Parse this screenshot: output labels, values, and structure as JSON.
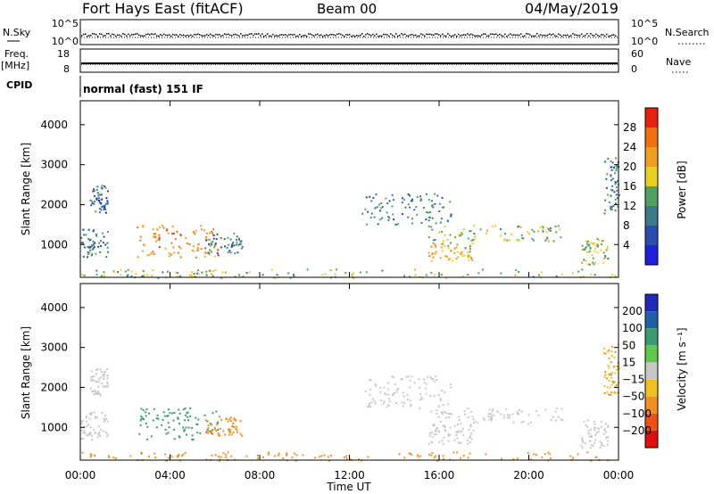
{
  "header": {
    "station": "Fort Hays East (fitACF)",
    "beam": "Beam 00",
    "date": "04/May/2019"
  },
  "sky_panel": {
    "left_label": "N.Sky",
    "right_label": "N.Search",
    "left_ticks": [
      "10^5",
      "10^0"
    ],
    "right_ticks": [
      "10^5",
      "10^0"
    ]
  },
  "freq_panel": {
    "left_label_1": "Freq.",
    "left_label_2": "[MHz]",
    "right_label": "Nave",
    "left_ticks": [
      "18",
      "8"
    ],
    "right_ticks": [
      "60",
      "0"
    ]
  },
  "cpid": {
    "label": "CPID",
    "value": "normal (fast) 151 IF"
  },
  "x_axis": {
    "label": "Time UT",
    "ticks": [
      "00:00",
      "04:00",
      "08:00",
      "12:00",
      "16:00",
      "20:00",
      "00:00"
    ]
  },
  "power_colorbar": {
    "label": "Power [dB]",
    "ticks": [
      "4",
      "8",
      "12",
      "16",
      "20",
      "24",
      "28"
    ],
    "colors": [
      "#1f1fe0",
      "#2a4db0",
      "#3d7a8a",
      "#52a060",
      "#e6d020",
      "#f0a020",
      "#f07010",
      "#e82010"
    ]
  },
  "velocity_colorbar": {
    "label": "Velocity [m s⁻¹]",
    "ticks": [
      "200",
      "100",
      "50",
      "15",
      "−15",
      "−50",
      "−100",
      "−200"
    ],
    "colors": [
      "#1e2ab8",
      "#2060a8",
      "#3a9a70",
      "#60c84a",
      "#c8c8c8",
      "#f0c020",
      "#f09020",
      "#f05010",
      "#e01010"
    ]
  },
  "chart_data": [
    {
      "type": "heatmap",
      "title": "",
      "ylabel": "Slant Range [km]",
      "xlabel": "",
      "y_ticks": [
        1000,
        2000,
        3000,
        4000
      ],
      "ylim": [
        180,
        4600
      ],
      "xlim_hours": [
        0,
        24
      ],
      "colorbar": "Power [dB]",
      "regions": [
        {
          "t0": 0,
          "t1": 1.2,
          "r0": 700,
          "r1": 1400,
          "power": 8
        },
        {
          "t0": 0.4,
          "t1": 1.2,
          "r0": 1800,
          "r1": 2500,
          "power": 6
        },
        {
          "t0": 2.5,
          "t1": 6.2,
          "r0": 700,
          "r1": 1500,
          "power": 22
        },
        {
          "t0": 5.5,
          "t1": 7.2,
          "r0": 800,
          "r1": 1300,
          "power": 8
        },
        {
          "t0": 0,
          "t1": 24,
          "r0": 180,
          "r1": 400,
          "power": 14
        },
        {
          "t0": 12.5,
          "t1": 16.5,
          "r0": 1500,
          "r1": 2300,
          "power": 8
        },
        {
          "t0": 15.5,
          "t1": 21.5,
          "r0": 1100,
          "r1": 1500,
          "power": 14
        },
        {
          "t0": 15.5,
          "t1": 17.5,
          "r0": 600,
          "r1": 1100,
          "power": 18
        },
        {
          "t0": 22.3,
          "t1": 23.5,
          "r0": 500,
          "r1": 1200,
          "power": 14
        },
        {
          "t0": 23.3,
          "t1": 24,
          "r0": 1800,
          "r1": 3200,
          "power": 8
        }
      ]
    },
    {
      "type": "heatmap",
      "title": "",
      "ylabel": "Slant Range [km]",
      "xlabel": "Time UT",
      "y_ticks": [
        1000,
        2000,
        3000,
        4000
      ],
      "ylim": [
        180,
        4600
      ],
      "xlim_hours": [
        0,
        24
      ],
      "colorbar": "Velocity [m s⁻¹]",
      "regions": [
        {
          "t0": 0,
          "t1": 1.2,
          "r0": 700,
          "r1": 1400,
          "velocity": 0
        },
        {
          "t0": 0.4,
          "t1": 1.2,
          "r0": 1800,
          "r1": 2500,
          "velocity": 0
        },
        {
          "t0": 2.5,
          "t1": 6.2,
          "r0": 700,
          "r1": 1500,
          "velocity": 40
        },
        {
          "t0": 5.5,
          "t1": 7.2,
          "r0": 800,
          "r1": 1300,
          "velocity": -60
        },
        {
          "t0": 0,
          "t1": 24,
          "r0": 180,
          "r1": 400,
          "velocity": -40
        },
        {
          "t0": 12.5,
          "t1": 16.5,
          "r0": 1500,
          "r1": 2300,
          "velocity": 0
        },
        {
          "t0": 15.5,
          "t1": 21.5,
          "r0": 1100,
          "r1": 1500,
          "velocity": 0
        },
        {
          "t0": 15.5,
          "t1": 17.5,
          "r0": 600,
          "r1": 1100,
          "velocity": 0
        },
        {
          "t0": 22.3,
          "t1": 23.5,
          "r0": 500,
          "r1": 1200,
          "velocity": 0
        },
        {
          "t0": 23.3,
          "t1": 24,
          "r0": 1800,
          "r1": 3200,
          "velocity": -30
        }
      ]
    }
  ]
}
